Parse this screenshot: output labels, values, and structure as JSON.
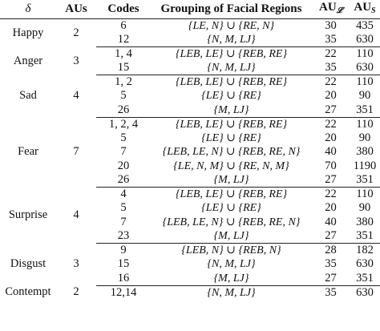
{
  "table": {
    "headers": {
      "delta": "δ",
      "aus": "AUs",
      "codes": "Codes",
      "grouping": "Grouping of Facial Regions",
      "au_l_main": "AU",
      "au_l_sub": "𝓛",
      "au_s_main": "AU",
      "au_s_sub": "S"
    },
    "groups": [
      {
        "emotion": "Happy",
        "aus": "2",
        "rows": [
          {
            "codes": "6",
            "grouping": "{LE, N} ∪ {RE, N}",
            "au_l": "30",
            "au_s": "435"
          },
          {
            "codes": "12",
            "grouping": "{N, M, LJ}",
            "au_l": "35",
            "au_s": "630"
          }
        ]
      },
      {
        "emotion": "Anger",
        "aus": "3",
        "rows": [
          {
            "codes": "1, 4",
            "grouping": "{LEB, LE} ∪ {REB, RE}",
            "au_l": "22",
            "au_s": "110"
          },
          {
            "codes": "15",
            "grouping": "{N, M, LJ}",
            "au_l": "35",
            "au_s": "630"
          }
        ]
      },
      {
        "emotion": "Sad",
        "aus": "4",
        "rows": [
          {
            "codes": "1, 2",
            "grouping": "{LEB, LE} ∪ {REB, RE}",
            "au_l": "22",
            "au_s": "110"
          },
          {
            "codes": "5",
            "grouping": "{LE} ∪ {RE}",
            "au_l": "20",
            "au_s": "90"
          },
          {
            "codes": "26",
            "grouping": "{M, LJ}",
            "au_l": "27",
            "au_s": "351"
          }
        ]
      },
      {
        "emotion": "Fear",
        "aus": "7",
        "rows": [
          {
            "codes": "1, 2, 4",
            "grouping": "{LEB, LE} ∪ {REB, RE}",
            "au_l": "22",
            "au_s": "110"
          },
          {
            "codes": "5",
            "grouping": "{LE} ∪ {RE}",
            "au_l": "20",
            "au_s": "90"
          },
          {
            "codes": "7",
            "grouping": "{LEB, LE, N} ∪ {REB, RE, N}",
            "au_l": "40",
            "au_s": "380"
          },
          {
            "codes": "20",
            "grouping": "{LE, N, M} ∪ {RE, N, M}",
            "au_l": "70",
            "au_s": "1190"
          },
          {
            "codes": "26",
            "grouping": "{M, LJ}",
            "au_l": "27",
            "au_s": "351"
          }
        ]
      },
      {
        "emotion": "Surprise",
        "aus": "4",
        "rows": [
          {
            "codes": "4",
            "grouping": "{LEB, LE} ∪ {REB, RE}",
            "au_l": "22",
            "au_s": "110"
          },
          {
            "codes": "5",
            "grouping": "{LE} ∪ {RE}",
            "au_l": "20",
            "au_s": "90"
          },
          {
            "codes": "7",
            "grouping": "{LEB, LE, N} ∪ {REB, RE, N}",
            "au_l": "40",
            "au_s": "380"
          },
          {
            "codes": "23",
            "grouping": "{M, LJ}",
            "au_l": "27",
            "au_s": "351"
          }
        ]
      },
      {
        "emotion": "Disgust",
        "aus": "3",
        "rows": [
          {
            "codes": "9",
            "grouping": "{LEB, N} ∪ {REB, N}",
            "au_l": "28",
            "au_s": "182"
          },
          {
            "codes": "15",
            "grouping": "{N, M, LJ}",
            "au_l": "35",
            "au_s": "630"
          },
          {
            "codes": "16",
            "grouping": "{M, LJ}",
            "au_l": "27",
            "au_s": "351"
          }
        ]
      },
      {
        "emotion": "Contempt",
        "aus": "2",
        "rows": [
          {
            "codes": "12,14",
            "grouping": "{N, M, LJ}",
            "au_l": "35",
            "au_s": "630"
          }
        ]
      }
    ]
  }
}
